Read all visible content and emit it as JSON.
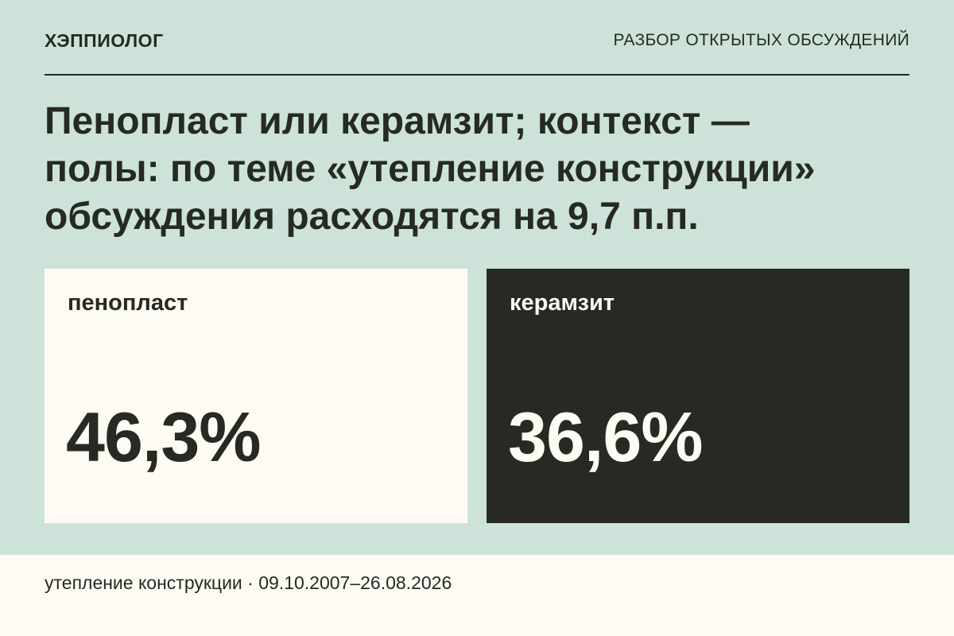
{
  "header": {
    "brand": "ХЭППИОЛОГ",
    "section": "РАЗБОР ОТКРЫТЫХ ОБСУЖДЕНИЙ"
  },
  "headline": {
    "line1": "Пенопласт или керамзит; контекст —",
    "line2": "полы: по теме «утепление конструкции»",
    "line3": "обсуждения расходятся на 9,7 п.п."
  },
  "cards": [
    {
      "label": "пенопласт",
      "value": "46,3%",
      "percent": 46.3
    },
    {
      "label": "керамзит",
      "value": "36,6%",
      "percent": 36.6
    }
  ],
  "footer": {
    "text": "утепление конструкции · 09.10.2007–26.08.2026"
  },
  "colors": {
    "background": "#cde3d9",
    "light": "#fdfbf3",
    "dark": "#262a23"
  }
}
